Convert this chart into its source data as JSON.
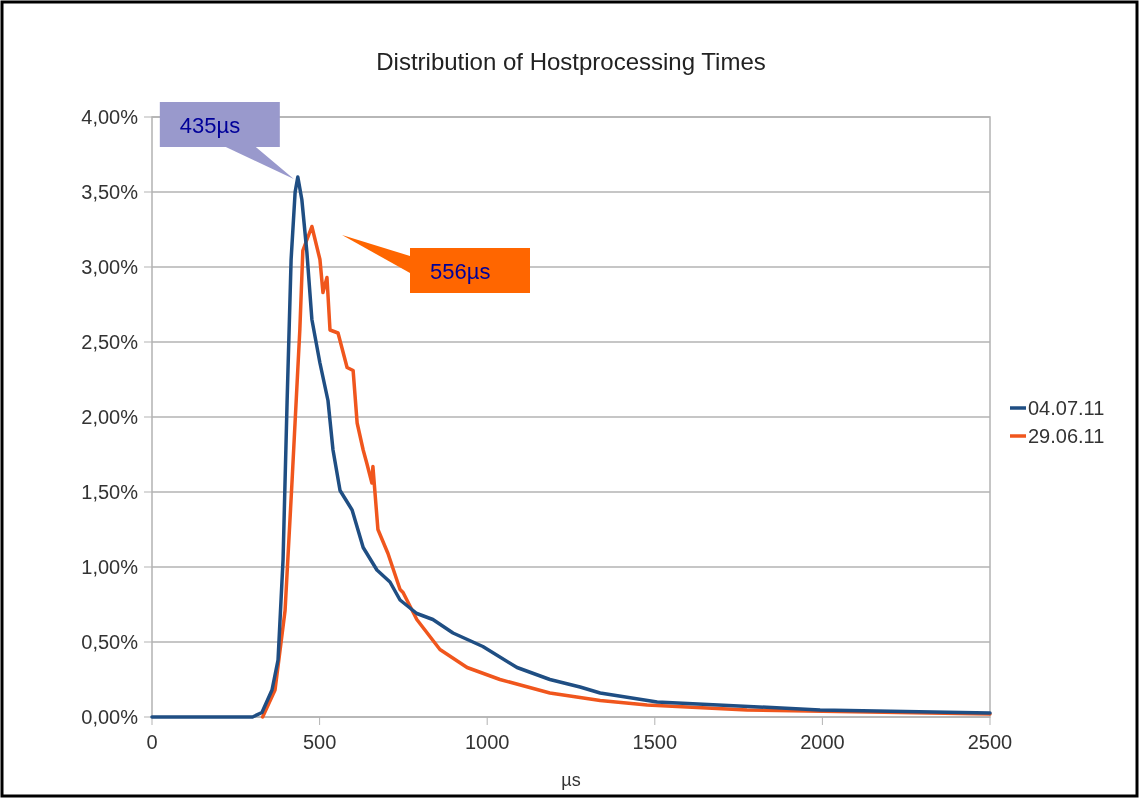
{
  "chart_data": {
    "type": "line",
    "title": "Distribution of Hostprocessing Times",
    "xlabel": "µs",
    "xlim": [
      0,
      2500
    ],
    "xticks": [
      0,
      500,
      1000,
      1500,
      2000,
      2500
    ],
    "ylim": [
      0,
      4
    ],
    "yticks": [
      {
        "value": 0,
        "label": "0,00%"
      },
      {
        "value": 0.5,
        "label": "0,50%"
      },
      {
        "value": 1,
        "label": "1,00%"
      },
      {
        "value": 1.5,
        "label": "1,50%"
      },
      {
        "value": 2,
        "label": "2,00%"
      },
      {
        "value": 2.5,
        "label": "2,50%"
      },
      {
        "value": 3,
        "label": "3,00%"
      },
      {
        "value": 3.5,
        "label": "3,50%"
      },
      {
        "value": 4,
        "label": "4,00%"
      }
    ],
    "grid": "y",
    "legend": "right",
    "marker": "none",
    "line_style": "solid",
    "series": [
      {
        "name": "04.07.11",
        "color": "#1f4e83",
        "x": [
          0,
          100,
          200,
          300,
          328,
          358,
          376,
          391,
          403,
          415,
          427,
          435,
          447,
          462,
          477,
          501,
          525,
          540,
          561,
          597,
          630,
          671,
          710,
          740,
          790,
          838,
          898,
          987,
          1089,
          1187,
          1277,
          1337,
          1507,
          1993,
          2500
        ],
        "values": [
          0,
          0,
          0,
          0,
          0.03,
          0.18,
          0.38,
          1.05,
          2.1,
          3.05,
          3.5,
          3.6,
          3.45,
          3.1,
          2.65,
          2.36,
          2.11,
          1.78,
          1.51,
          1.38,
          1.13,
          0.98,
          0.9,
          0.78,
          0.69,
          0.65,
          0.56,
          0.47,
          0.33,
          0.25,
          0.2,
          0.16,
          0.1,
          0.047,
          0.027
        ]
      },
      {
        "name": "29.06.11",
        "color": "#f0561d",
        "x": [
          330,
          367,
          397,
          418,
          441,
          450,
          477,
          501,
          510,
          522,
          531,
          555,
          582,
          600,
          612,
          630,
          641,
          656,
          659,
          674,
          704,
          740,
          749,
          790,
          859,
          940,
          1038,
          1187,
          1277,
          1337,
          1477,
          1775,
          2500
        ],
        "values": [
          0,
          0.18,
          0.71,
          1.58,
          2.58,
          3.11,
          3.27,
          3.05,
          2.83,
          2.93,
          2.58,
          2.56,
          2.33,
          2.31,
          1.96,
          1.78,
          1.69,
          1.56,
          1.67,
          1.25,
          1.09,
          0.85,
          0.83,
          0.65,
          0.45,
          0.33,
          0.25,
          0.16,
          0.13,
          0.11,
          0.08,
          0.047,
          0.02
        ]
      }
    ],
    "annotations": [
      {
        "text": "435µs",
        "x": 435,
        "y": 3.6
      },
      "556µs"
    ]
  }
}
